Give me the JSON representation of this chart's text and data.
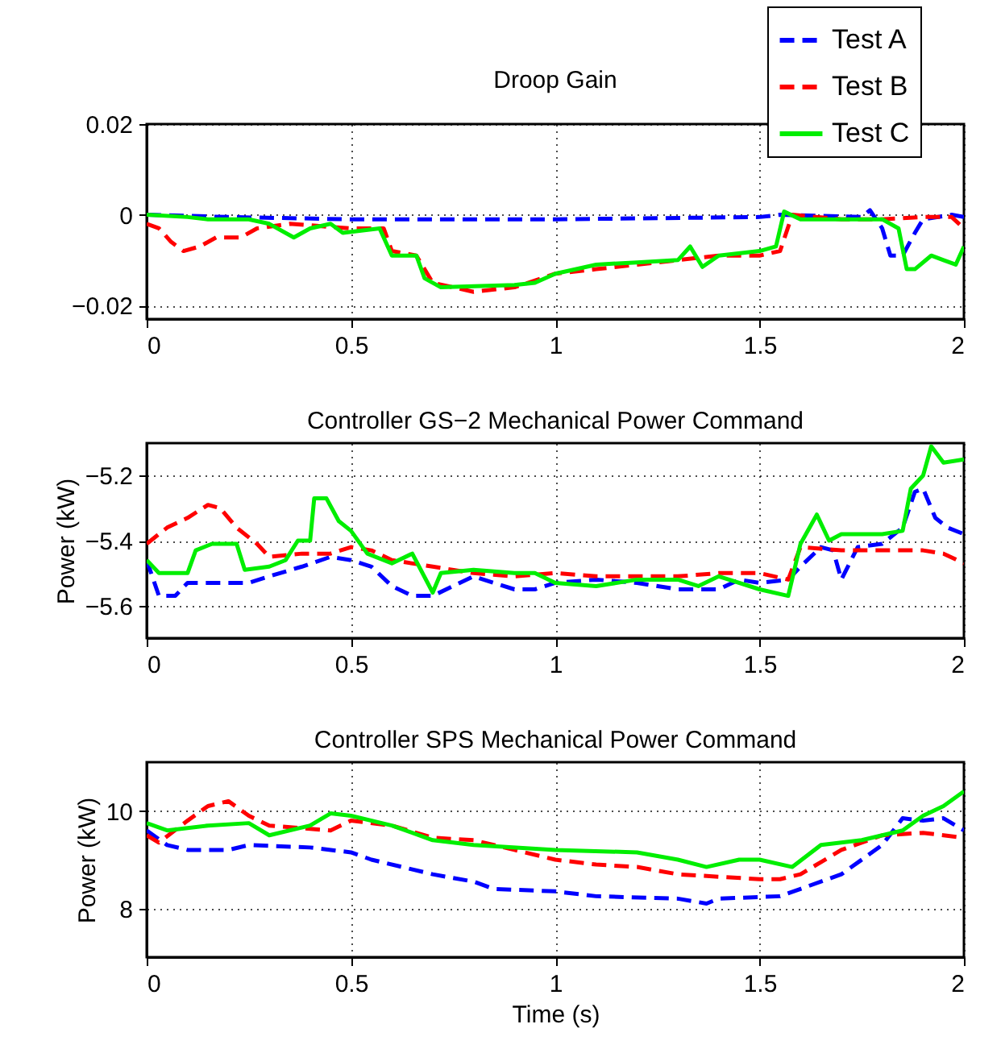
{
  "chart_data": [
    {
      "type": "line",
      "title": "Droop Gain",
      "xlim": [
        0,
        2
      ],
      "xticks": [
        0,
        0.5,
        1,
        1.5,
        2
      ],
      "ylim": [
        -0.023,
        0.02
      ],
      "yticks": [
        -0.02,
        0,
        0.02
      ],
      "grid": true,
      "legend": "top right",
      "series": [
        {
          "name": "Test A",
          "color": "#0000ff",
          "line_style": "dashed",
          "x": [
            0,
            0.2,
            0.5,
            1,
            1.5,
            1.55,
            1.75,
            1.77,
            1.8,
            1.82,
            1.85,
            1.88,
            1.9,
            1.97,
            2
          ],
          "values": [
            0,
            -0.0005,
            -0.001,
            -0.001,
            -0.0005,
            0,
            -0.0005,
            0.001,
            -0.003,
            -0.009,
            -0.009,
            -0.004,
            -0.001,
            0,
            -0.0005
          ]
        },
        {
          "name": "Test B",
          "color": "#ff0000",
          "line_style": "dashed",
          "x": [
            0,
            0.03,
            0.06,
            0.09,
            0.13,
            0.17,
            0.23,
            0.27,
            0.35,
            0.5,
            0.58,
            0.6,
            0.66,
            0.7,
            0.8,
            0.9,
            1.0,
            1.1,
            1.2,
            1.3,
            1.4,
            1.5,
            1.55,
            1.58,
            1.7,
            1.8,
            1.9,
            1.97,
            2
          ],
          "values": [
            -0.002,
            -0.003,
            -0.006,
            -0.008,
            -0.007,
            -0.005,
            -0.005,
            -0.003,
            -0.002,
            -0.003,
            -0.003,
            -0.008,
            -0.009,
            -0.015,
            -0.017,
            -0.016,
            -0.013,
            -0.012,
            -0.011,
            -0.01,
            -0.009,
            -0.009,
            -0.008,
            0,
            -0.001,
            -0.001,
            -0.0005,
            -0.0005,
            -0.003
          ]
        },
        {
          "name": "Test C",
          "color": "#00ee00",
          "line_style": "solid",
          "x": [
            0,
            0.1,
            0.15,
            0.25,
            0.3,
            0.36,
            0.4,
            0.45,
            0.48,
            0.57,
            0.6,
            0.66,
            0.68,
            0.72,
            0.9,
            0.95,
            1.0,
            1.1,
            1.2,
            1.3,
            1.33,
            1.36,
            1.4,
            1.5,
            1.54,
            1.56,
            1.6,
            1.8,
            1.84,
            1.86,
            1.88,
            1.92,
            1.95,
            1.98,
            2
          ],
          "values": [
            0,
            -0.0005,
            -0.001,
            -0.001,
            -0.002,
            -0.005,
            -0.003,
            -0.002,
            -0.004,
            -0.003,
            -0.009,
            -0.009,
            -0.014,
            -0.016,
            -0.0155,
            -0.015,
            -0.013,
            -0.011,
            -0.0105,
            -0.01,
            -0.007,
            -0.0115,
            -0.009,
            -0.008,
            -0.007,
            0.0007,
            -0.001,
            -0.001,
            -0.003,
            -0.012,
            -0.012,
            -0.009,
            -0.01,
            -0.011,
            -0.007
          ]
        }
      ]
    },
    {
      "type": "line",
      "title": "Controller GS−2 Mechanical Power Command",
      "ylabel": "Power (kW)",
      "xlim": [
        0,
        2
      ],
      "xticks": [
        0,
        0.5,
        1,
        1.5,
        2
      ],
      "ylim": [
        -5.7,
        -5.1
      ],
      "yticks": [
        -5.6,
        -5.4,
        -5.2
      ],
      "grid": true,
      "series": [
        {
          "color": "#0000ff",
          "line_style": "dashed",
          "x": [
            0,
            0.03,
            0.07,
            0.1,
            0.15,
            0.25,
            0.3,
            0.38,
            0.45,
            0.5,
            0.55,
            0.6,
            0.65,
            0.7,
            0.8,
            0.9,
            0.95,
            1.0,
            1.1,
            1.2,
            1.3,
            1.4,
            1.45,
            1.5,
            1.57,
            1.6,
            1.65,
            1.68,
            1.7,
            1.74,
            1.8,
            1.85,
            1.88,
            1.9,
            1.93,
            1.96,
            2
          ],
          "values": [
            -5.46,
            -5.57,
            -5.57,
            -5.53,
            -5.53,
            -5.53,
            -5.51,
            -5.48,
            -5.45,
            -5.46,
            -5.48,
            -5.54,
            -5.57,
            -5.57,
            -5.51,
            -5.55,
            -5.55,
            -5.53,
            -5.52,
            -5.53,
            -5.55,
            -5.55,
            -5.52,
            -5.53,
            -5.52,
            -5.48,
            -5.42,
            -5.43,
            -5.52,
            -5.42,
            -5.41,
            -5.36,
            -5.25,
            -5.24,
            -5.33,
            -5.36,
            -5.38
          ]
        },
        {
          "color": "#ff0000",
          "line_style": "dashed",
          "x": [
            0,
            0.05,
            0.1,
            0.15,
            0.18,
            0.22,
            0.27,
            0.3,
            0.38,
            0.45,
            0.5,
            0.55,
            0.6,
            0.7,
            0.8,
            0.9,
            1.0,
            1.1,
            1.2,
            1.3,
            1.4,
            1.5,
            1.57,
            1.6,
            1.7,
            1.8,
            1.9,
            1.95,
            2
          ],
          "values": [
            -5.41,
            -5.36,
            -5.33,
            -5.29,
            -5.3,
            -5.36,
            -5.41,
            -5.45,
            -5.44,
            -5.44,
            -5.42,
            -5.43,
            -5.46,
            -5.48,
            -5.5,
            -5.51,
            -5.5,
            -5.51,
            -5.51,
            -5.51,
            -5.5,
            -5.5,
            -5.52,
            -5.42,
            -5.43,
            -5.43,
            -5.43,
            -5.44,
            -5.47
          ]
        },
        {
          "color": "#00ee00",
          "line_style": "solid",
          "x": [
            0,
            0.03,
            0.1,
            0.12,
            0.16,
            0.22,
            0.24,
            0.3,
            0.34,
            0.37,
            0.4,
            0.41,
            0.44,
            0.47,
            0.5,
            0.54,
            0.6,
            0.65,
            0.7,
            0.72,
            0.8,
            0.9,
            0.95,
            1.0,
            1.1,
            1.2,
            1.3,
            1.35,
            1.4,
            1.5,
            1.57,
            1.6,
            1.64,
            1.67,
            1.7,
            1.8,
            1.85,
            1.87,
            1.9,
            1.92,
            1.95,
            2
          ],
          "values": [
            -5.46,
            -5.5,
            -5.5,
            -5.43,
            -5.41,
            -5.41,
            -5.49,
            -5.48,
            -5.46,
            -5.4,
            -5.4,
            -5.27,
            -5.27,
            -5.34,
            -5.37,
            -5.44,
            -5.47,
            -5.44,
            -5.56,
            -5.5,
            -5.49,
            -5.5,
            -5.5,
            -5.53,
            -5.54,
            -5.52,
            -5.52,
            -5.54,
            -5.51,
            -5.55,
            -5.57,
            -5.41,
            -5.32,
            -5.4,
            -5.38,
            -5.38,
            -5.37,
            -5.24,
            -5.2,
            -5.11,
            -5.16,
            -5.15
          ]
        }
      ]
    },
    {
      "type": "line",
      "title": "Controller SPS Mechanical Power Command",
      "xlabel": "Time (s)",
      "ylabel": "Power (kW)",
      "xlim": [
        0,
        2
      ],
      "xticks": [
        0,
        0.5,
        1,
        1.5,
        2
      ],
      "ylim": [
        7,
        11
      ],
      "yticks": [
        8,
        10
      ],
      "grid": true,
      "series": [
        {
          "color": "#0000ff",
          "line_style": "dashed",
          "x": [
            0,
            0.05,
            0.1,
            0.2,
            0.25,
            0.4,
            0.5,
            0.55,
            0.7,
            0.8,
            0.85,
            1.0,
            1.1,
            1.3,
            1.37,
            1.4,
            1.55,
            1.6,
            1.7,
            1.8,
            1.85,
            1.9,
            1.95,
            2
          ],
          "values": [
            9.6,
            9.3,
            9.2,
            9.2,
            9.3,
            9.25,
            9.15,
            9.0,
            8.7,
            8.55,
            8.4,
            8.35,
            8.25,
            8.2,
            8.1,
            8.2,
            8.25,
            8.4,
            8.7,
            9.3,
            9.85,
            9.8,
            9.85,
            9.6
          ]
        },
        {
          "color": "#ff0000",
          "line_style": "dashed",
          "x": [
            0,
            0.03,
            0.1,
            0.15,
            0.2,
            0.25,
            0.3,
            0.45,
            0.5,
            0.6,
            0.7,
            0.8,
            0.9,
            1.0,
            1.1,
            1.2,
            1.3,
            1.4,
            1.5,
            1.55,
            1.6,
            1.7,
            1.8,
            1.9,
            2
          ],
          "values": [
            9.5,
            9.35,
            9.8,
            10.1,
            10.2,
            9.9,
            9.7,
            9.6,
            9.8,
            9.7,
            9.45,
            9.4,
            9.2,
            9.0,
            8.9,
            8.85,
            8.7,
            8.65,
            8.6,
            8.6,
            8.7,
            9.2,
            9.5,
            9.55,
            9.45
          ]
        },
        {
          "color": "#00ee00",
          "line_style": "solid",
          "x": [
            0,
            0.05,
            0.15,
            0.25,
            0.3,
            0.4,
            0.45,
            0.5,
            0.6,
            0.7,
            0.8,
            1.0,
            1.2,
            1.3,
            1.37,
            1.45,
            1.5,
            1.58,
            1.65,
            1.75,
            1.85,
            1.9,
            1.95,
            2
          ],
          "values": [
            9.75,
            9.6,
            9.7,
            9.75,
            9.5,
            9.7,
            9.95,
            9.9,
            9.7,
            9.4,
            9.3,
            9.2,
            9.15,
            9.0,
            8.85,
            9.0,
            9.0,
            8.85,
            9.3,
            9.4,
            9.6,
            9.9,
            10.1,
            10.4
          ]
        }
      ]
    }
  ]
}
